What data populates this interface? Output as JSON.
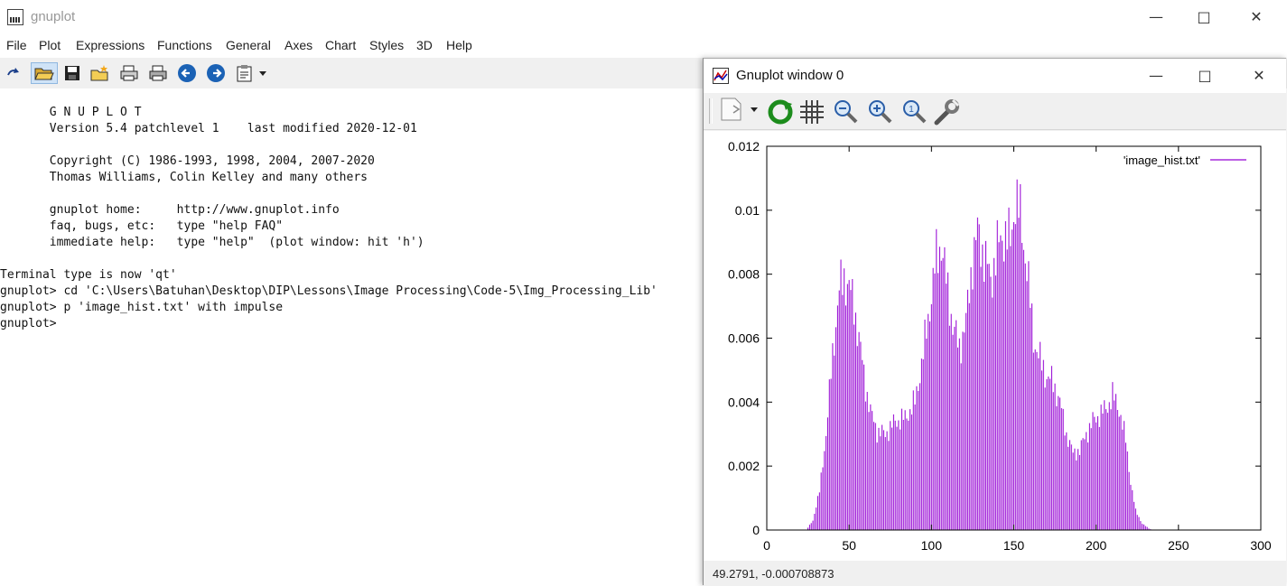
{
  "main_window": {
    "title": "gnuplot",
    "menu": [
      "File",
      "Plot",
      "Expressions",
      "Functions",
      "General",
      "Axes",
      "Chart",
      "Styles",
      "3D",
      "Help"
    ],
    "toolbar_icons": [
      "replot-icon",
      "open-folder-icon",
      "save-icon",
      "new-file-icon",
      "print-icon",
      "print-setup-icon",
      "back-icon",
      "forward-icon",
      "clipboard-menu-icon"
    ]
  },
  "console": {
    "lines": [
      "       G N U P L O T",
      "       Version 5.4 patchlevel 1    last modified 2020-12-01",
      "",
      "       Copyright (C) 1986-1993, 1998, 2004, 2007-2020",
      "       Thomas Williams, Colin Kelley and many others",
      "",
      "       gnuplot home:     http://www.gnuplot.info",
      "       faq, bugs, etc:   type \"help FAQ\"",
      "       immediate help:   type \"help\"  (plot window: hit 'h')",
      "",
      "Terminal type is now 'qt'",
      "gnuplot> cd 'C:\\Users\\Batuhan\\Desktop\\DIP\\Lessons\\Image Processing\\Code-5\\Img_Processing_Lib'",
      "gnuplot> p 'image_hist.txt' with impulse",
      "gnuplot> "
    ]
  },
  "plot_window": {
    "title": "Gnuplot window 0",
    "toolbar_icons": [
      "export-menu-icon",
      "replot-icon",
      "grid-icon",
      "zoom-out-icon",
      "zoom-in-icon",
      "zoom-reset-icon",
      "settings-wrench-icon"
    ],
    "status": "49.2791, -0.000708873"
  },
  "chart_data": {
    "type": "bar",
    "style": "impulses",
    "series": [
      {
        "name": "'image_hist.txt'",
        "color": "#9400d3"
      }
    ],
    "legend": "top-right",
    "grid": false,
    "xlim": [
      0,
      300
    ],
    "ylim": [
      0,
      0.012
    ],
    "x_ticks": [
      "0",
      "50",
      "100",
      "150",
      "200",
      "250",
      "300"
    ],
    "y_ticks": [
      "0",
      "0.002",
      "0.004",
      "0.006",
      "0.008",
      "0.01",
      "0.012"
    ],
    "peaks": [
      {
        "x": 24,
        "y": 0
      },
      {
        "x": 28,
        "y": 0.0003
      },
      {
        "x": 32,
        "y": 0.0012
      },
      {
        "x": 36,
        "y": 0.003
      },
      {
        "x": 40,
        "y": 0.0055
      },
      {
        "x": 44,
        "y": 0.0075
      },
      {
        "x": 47,
        "y": 0.0079
      },
      {
        "x": 50,
        "y": 0.0076
      },
      {
        "x": 53,
        "y": 0.007
      },
      {
        "x": 56,
        "y": 0.006
      },
      {
        "x": 60,
        "y": 0.0045
      },
      {
        "x": 63,
        "y": 0.0037
      },
      {
        "x": 67,
        "y": 0.0031
      },
      {
        "x": 72,
        "y": 0.003
      },
      {
        "x": 78,
        "y": 0.0034
      },
      {
        "x": 84,
        "y": 0.0035
      },
      {
        "x": 90,
        "y": 0.004
      },
      {
        "x": 95,
        "y": 0.0055
      },
      {
        "x": 99,
        "y": 0.007
      },
      {
        "x": 103,
        "y": 0.0085
      },
      {
        "x": 106,
        "y": 0.009
      },
      {
        "x": 109,
        "y": 0.0078
      },
      {
        "x": 113,
        "y": 0.0064
      },
      {
        "x": 117,
        "y": 0.0057
      },
      {
        "x": 121,
        "y": 0.0065
      },
      {
        "x": 125,
        "y": 0.0085
      },
      {
        "x": 128,
        "y": 0.0093
      },
      {
        "x": 132,
        "y": 0.0086
      },
      {
        "x": 136,
        "y": 0.0078
      },
      {
        "x": 140,
        "y": 0.0088
      },
      {
        "x": 144,
        "y": 0.0093
      },
      {
        "x": 148,
        "y": 0.009
      },
      {
        "x": 151,
        "y": 0.0104
      },
      {
        "x": 154,
        "y": 0.0098
      },
      {
        "x": 158,
        "y": 0.0082
      },
      {
        "x": 162,
        "y": 0.006
      },
      {
        "x": 166,
        "y": 0.0053
      },
      {
        "x": 170,
        "y": 0.0048
      },
      {
        "x": 174,
        "y": 0.0046
      },
      {
        "x": 178,
        "y": 0.004
      },
      {
        "x": 182,
        "y": 0.003
      },
      {
        "x": 186,
        "y": 0.0024
      },
      {
        "x": 190,
        "y": 0.0025
      },
      {
        "x": 194,
        "y": 0.003
      },
      {
        "x": 198,
        "y": 0.0034
      },
      {
        "x": 202,
        "y": 0.0036
      },
      {
        "x": 206,
        "y": 0.0038
      },
      {
        "x": 210,
        "y": 0.0042
      },
      {
        "x": 214,
        "y": 0.0038
      },
      {
        "x": 218,
        "y": 0.0028
      },
      {
        "x": 221,
        "y": 0.0015
      },
      {
        "x": 224,
        "y": 0.0006
      },
      {
        "x": 228,
        "y": 0.0002
      },
      {
        "x": 232,
        "y": 5e-05
      },
      {
        "x": 234,
        "y": 0
      }
    ]
  },
  "colors": {
    "impulse": "#9400d3",
    "toolbar_bg": "#f0f0f0"
  }
}
